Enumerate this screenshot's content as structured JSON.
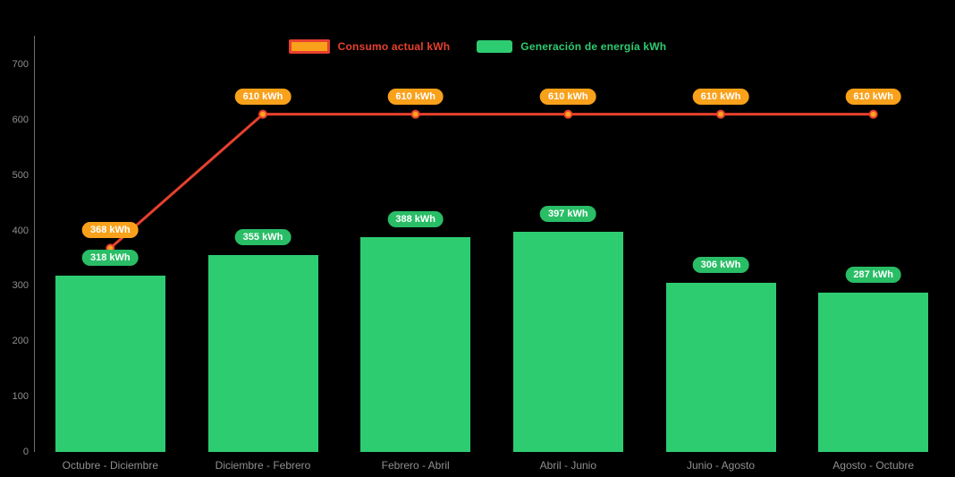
{
  "background": "#000000",
  "colors": {
    "bar": "#2ecc71",
    "bar_label_bg": "#29bd66",
    "line": "#e8402e",
    "marker_fill": "#ffa21f",
    "line_label_bg": "#f9a11b",
    "axis_text": "#8f8f8f",
    "value_text": "#ffffff"
  },
  "legend": {
    "consumo": {
      "label": "Consumo actual kWh"
    },
    "generacion": {
      "label": "Generación de energía kWh"
    }
  },
  "chart_data": {
    "type": "bar",
    "subtype": "bar+line combo",
    "categories": [
      "Octubre - Diciembre",
      "Diciembre - Febrero",
      "Febrero - Abril",
      "Abril - Junio",
      "Junio - Agosto",
      "Agosto - Octubre"
    ],
    "series": [
      {
        "name": "Consumo actual kWh",
        "type": "line",
        "color": "#e8402e",
        "values": [
          368,
          610,
          610,
          610,
          610,
          610
        ],
        "labels": [
          "368 kWh",
          "610 kWh",
          "610 kWh",
          "610 kWh",
          "610 kWh",
          "610 kWh"
        ]
      },
      {
        "name": "Generación de energía kWh",
        "type": "bar",
        "color": "#2ecc71",
        "values": [
          318,
          355,
          388,
          397,
          306,
          287
        ],
        "labels": [
          "318 kWh",
          "355 kWh",
          "388 kWh",
          "397 kWh",
          "306 kWh",
          "287 kWh"
        ]
      }
    ],
    "unit": "kWh",
    "ylim": [
      0,
      700
    ],
    "yticks": [
      0,
      100,
      200,
      300,
      400,
      500,
      600,
      700
    ],
    "grid": false,
    "legend_position": "top"
  }
}
